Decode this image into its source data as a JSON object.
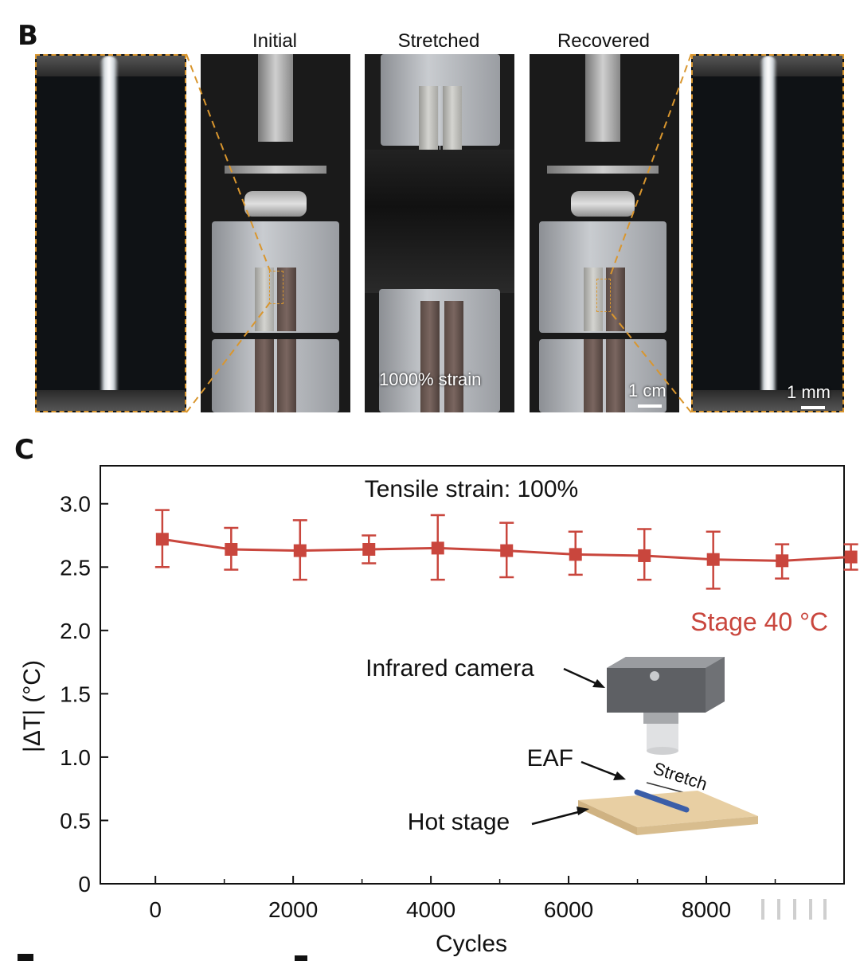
{
  "panel_b": {
    "letter": "B",
    "labels": {
      "initial": "Initial",
      "stretched": "Stretched",
      "recovered": "Recovered"
    },
    "strain_label": "1000% strain",
    "scale_cm": "1 cm",
    "scale_mm": "1 mm",
    "dash_color": "#d9962e"
  },
  "panel_c": {
    "letter": "C",
    "annotation_title": "Tensile strain: 100%",
    "series_label": "Stage 40 °C",
    "series_color": "#c9463d",
    "inset": {
      "camera_label": "Infrared camera",
      "fiber_label": "EAF",
      "stage_label": "Hot stage",
      "stretch_label": "Stretch"
    }
  },
  "chart_data": {
    "type": "line",
    "title": "",
    "xlabel": "Cycles",
    "ylabel": "|ΔT| (°C)",
    "xlim": [
      -800,
      10000
    ],
    "ylim": [
      0,
      3.3
    ],
    "xticks": [
      "0",
      "2000",
      "4000",
      "6000",
      "8000"
    ],
    "yticks": [
      "0",
      "0.5",
      "1.0",
      "1.5",
      "2.0",
      "2.5",
      "3.0"
    ],
    "grid": false,
    "legend": "none",
    "series": [
      {
        "name": "Stage 40 °C",
        "x": [
          100,
          1100,
          2100,
          3100,
          4100,
          5100,
          6100,
          7100,
          8100,
          9100,
          10100
        ],
        "y": [
          2.72,
          2.64,
          2.63,
          2.64,
          2.65,
          2.63,
          2.6,
          2.59,
          2.56,
          2.55,
          2.58
        ],
        "err_low": [
          2.5,
          2.48,
          2.4,
          2.53,
          2.4,
          2.42,
          2.44,
          2.4,
          2.33,
          2.41,
          2.48
        ],
        "err_high": [
          2.95,
          2.81,
          2.87,
          2.75,
          2.91,
          2.85,
          2.78,
          2.8,
          2.78,
          2.68,
          2.68
        ]
      }
    ]
  }
}
